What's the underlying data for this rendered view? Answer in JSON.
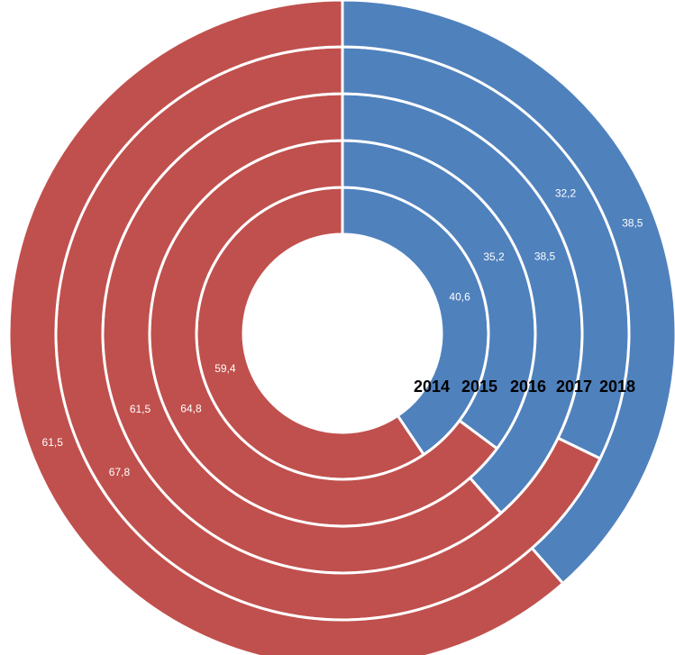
{
  "chart_data": {
    "type": "doughnut",
    "title": "",
    "colors": {
      "blue": "#4F81BD",
      "red": "#C0504D"
    },
    "rings": [
      {
        "year": "2014",
        "segments": [
          {
            "label": "40,6",
            "value": 40.6,
            "color": "#4F81BD"
          },
          {
            "label": "59,4",
            "value": 59.4,
            "color": "#C0504D"
          }
        ]
      },
      {
        "year": "2015",
        "segments": [
          {
            "label": "35,2",
            "value": 35.2,
            "color": "#4F81BD"
          },
          {
            "label": "64,8",
            "value": 64.8,
            "color": "#C0504D"
          }
        ]
      },
      {
        "year": "2016",
        "segments": [
          {
            "label": "38,5",
            "value": 38.5,
            "color": "#4F81BD"
          },
          {
            "label": "61,5",
            "value": 61.5,
            "color": "#C0504D"
          }
        ]
      },
      {
        "year": "2017",
        "segments": [
          {
            "label": "32,2",
            "value": 32.2,
            "color": "#4F81BD"
          },
          {
            "label": "67,8",
            "value": 67.8,
            "color": "#C0504D"
          }
        ]
      },
      {
        "year": "2018",
        "segments": [
          {
            "label": "38,5",
            "value": 38.5,
            "color": "#4F81BD"
          },
          {
            "label": "61,5",
            "value": 61.5,
            "color": "#C0504D"
          }
        ]
      }
    ]
  }
}
